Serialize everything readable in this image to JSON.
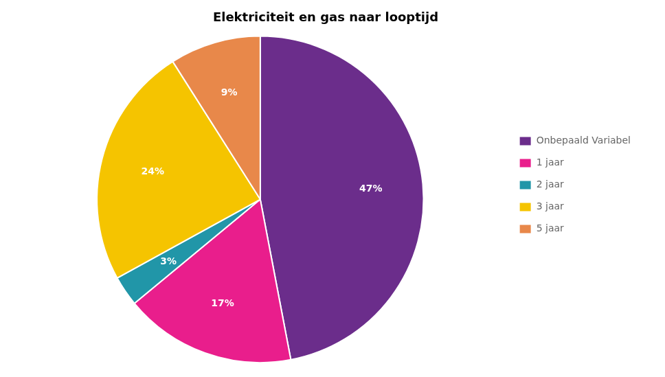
{
  "chart_data": {
    "type": "pie",
    "title": "Elektriciteit en gas naar looptijd",
    "categories": [
      "Onbepaald Variabel",
      "1 jaar",
      "2 jaar",
      "3 jaar",
      "5 jaar"
    ],
    "values": [
      47,
      17,
      3,
      24,
      9
    ],
    "value_labels": [
      "47%",
      "17%",
      "3%",
      "24%",
      "9%"
    ],
    "colors": [
      "#6B2D8B",
      "#E91E8C",
      "#2196A8",
      "#F5C400",
      "#E8884A"
    ],
    "data_labels": true,
    "legend": "right"
  }
}
